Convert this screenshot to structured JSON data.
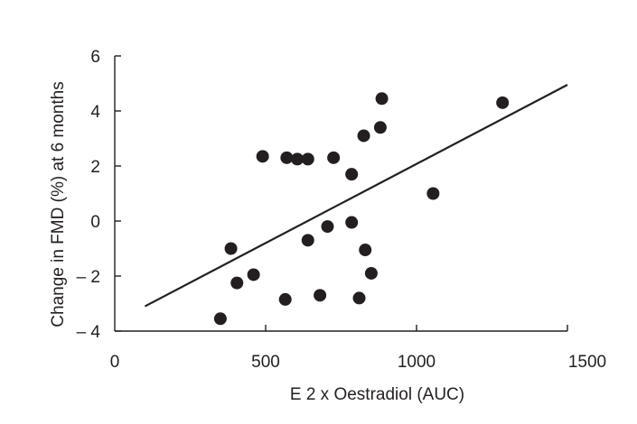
{
  "chart_data": {
    "type": "scatter",
    "xlabel": "E 2 x Oestradiol (AUC)",
    "ylabel": "Change in FMD (%) at 6 months",
    "xlim": [
      0,
      1500
    ],
    "ylim": [
      -4,
      6
    ],
    "xticks": [
      0,
      500,
      1000,
      1500
    ],
    "yticks": [
      -4,
      -2,
      0,
      2,
      4,
      6
    ],
    "ytick_labels": [
      "– 4",
      "– 2",
      "0",
      "2",
      "4",
      "6"
    ],
    "grid": false,
    "legend": "none",
    "marker_color": "#231f20",
    "points": [
      {
        "x": 350,
        "y": -3.55
      },
      {
        "x": 385,
        "y": -1.0
      },
      {
        "x": 405,
        "y": -2.25
      },
      {
        "x": 460,
        "y": -1.95
      },
      {
        "x": 490,
        "y": 2.35
      },
      {
        "x": 565,
        "y": -2.85
      },
      {
        "x": 570,
        "y": 2.3
      },
      {
        "x": 605,
        "y": 2.25
      },
      {
        "x": 640,
        "y": 2.25
      },
      {
        "x": 640,
        "y": -0.7
      },
      {
        "x": 680,
        "y": -2.7
      },
      {
        "x": 705,
        "y": -0.2
      },
      {
        "x": 725,
        "y": 2.3
      },
      {
        "x": 785,
        "y": 1.7
      },
      {
        "x": 785,
        "y": -0.05
      },
      {
        "x": 810,
        "y": -2.8
      },
      {
        "x": 825,
        "y": 3.1
      },
      {
        "x": 830,
        "y": -1.05
      },
      {
        "x": 850,
        "y": -1.9
      },
      {
        "x": 880,
        "y": 3.4
      },
      {
        "x": 885,
        "y": 4.45
      },
      {
        "x": 1055,
        "y": 1.0
      },
      {
        "x": 1285,
        "y": 4.3
      }
    ],
    "fit_line": {
      "x": [
        100,
        1500
      ],
      "y": [
        -3.1,
        4.95
      ]
    }
  }
}
